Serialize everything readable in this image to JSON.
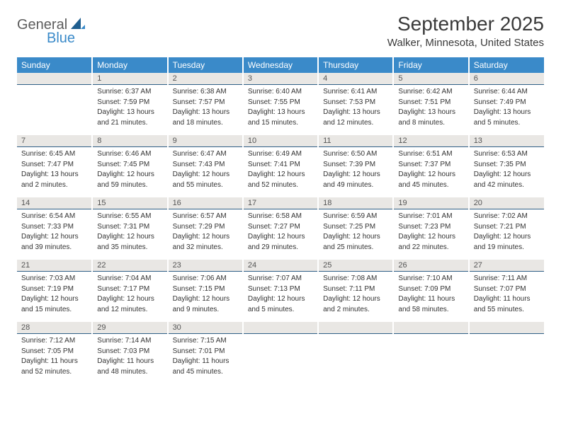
{
  "logo": {
    "part1": "General",
    "part2": "Blue"
  },
  "title": "September 2025",
  "subtitle": "Walker, Minnesota, United States",
  "colors": {
    "header_bg": "#3a8ac9",
    "header_text": "#ffffff",
    "daynum_bg": "#e9e7e4",
    "daynum_border": "#2f5f86",
    "body_text": "#333333",
    "title_text": "#3a3a3a",
    "logo_gray": "#5c5c5c",
    "logo_blue": "#3a8ac9"
  },
  "day_headers": [
    "Sunday",
    "Monday",
    "Tuesday",
    "Wednesday",
    "Thursday",
    "Friday",
    "Saturday"
  ],
  "weeks": [
    [
      {
        "empty": true
      },
      {
        "n": "1",
        "sr": "Sunrise: 6:37 AM",
        "ss": "Sunset: 7:59 PM",
        "dl1": "Daylight: 13 hours",
        "dl2": "and 21 minutes."
      },
      {
        "n": "2",
        "sr": "Sunrise: 6:38 AM",
        "ss": "Sunset: 7:57 PM",
        "dl1": "Daylight: 13 hours",
        "dl2": "and 18 minutes."
      },
      {
        "n": "3",
        "sr": "Sunrise: 6:40 AM",
        "ss": "Sunset: 7:55 PM",
        "dl1": "Daylight: 13 hours",
        "dl2": "and 15 minutes."
      },
      {
        "n": "4",
        "sr": "Sunrise: 6:41 AM",
        "ss": "Sunset: 7:53 PM",
        "dl1": "Daylight: 13 hours",
        "dl2": "and 12 minutes."
      },
      {
        "n": "5",
        "sr": "Sunrise: 6:42 AM",
        "ss": "Sunset: 7:51 PM",
        "dl1": "Daylight: 13 hours",
        "dl2": "and 8 minutes."
      },
      {
        "n": "6",
        "sr": "Sunrise: 6:44 AM",
        "ss": "Sunset: 7:49 PM",
        "dl1": "Daylight: 13 hours",
        "dl2": "and 5 minutes."
      }
    ],
    [
      {
        "n": "7",
        "sr": "Sunrise: 6:45 AM",
        "ss": "Sunset: 7:47 PM",
        "dl1": "Daylight: 13 hours",
        "dl2": "and 2 minutes."
      },
      {
        "n": "8",
        "sr": "Sunrise: 6:46 AM",
        "ss": "Sunset: 7:45 PM",
        "dl1": "Daylight: 12 hours",
        "dl2": "and 59 minutes."
      },
      {
        "n": "9",
        "sr": "Sunrise: 6:47 AM",
        "ss": "Sunset: 7:43 PM",
        "dl1": "Daylight: 12 hours",
        "dl2": "and 55 minutes."
      },
      {
        "n": "10",
        "sr": "Sunrise: 6:49 AM",
        "ss": "Sunset: 7:41 PM",
        "dl1": "Daylight: 12 hours",
        "dl2": "and 52 minutes."
      },
      {
        "n": "11",
        "sr": "Sunrise: 6:50 AM",
        "ss": "Sunset: 7:39 PM",
        "dl1": "Daylight: 12 hours",
        "dl2": "and 49 minutes."
      },
      {
        "n": "12",
        "sr": "Sunrise: 6:51 AM",
        "ss": "Sunset: 7:37 PM",
        "dl1": "Daylight: 12 hours",
        "dl2": "and 45 minutes."
      },
      {
        "n": "13",
        "sr": "Sunrise: 6:53 AM",
        "ss": "Sunset: 7:35 PM",
        "dl1": "Daylight: 12 hours",
        "dl2": "and 42 minutes."
      }
    ],
    [
      {
        "n": "14",
        "sr": "Sunrise: 6:54 AM",
        "ss": "Sunset: 7:33 PM",
        "dl1": "Daylight: 12 hours",
        "dl2": "and 39 minutes."
      },
      {
        "n": "15",
        "sr": "Sunrise: 6:55 AM",
        "ss": "Sunset: 7:31 PM",
        "dl1": "Daylight: 12 hours",
        "dl2": "and 35 minutes."
      },
      {
        "n": "16",
        "sr": "Sunrise: 6:57 AM",
        "ss": "Sunset: 7:29 PM",
        "dl1": "Daylight: 12 hours",
        "dl2": "and 32 minutes."
      },
      {
        "n": "17",
        "sr": "Sunrise: 6:58 AM",
        "ss": "Sunset: 7:27 PM",
        "dl1": "Daylight: 12 hours",
        "dl2": "and 29 minutes."
      },
      {
        "n": "18",
        "sr": "Sunrise: 6:59 AM",
        "ss": "Sunset: 7:25 PM",
        "dl1": "Daylight: 12 hours",
        "dl2": "and 25 minutes."
      },
      {
        "n": "19",
        "sr": "Sunrise: 7:01 AM",
        "ss": "Sunset: 7:23 PM",
        "dl1": "Daylight: 12 hours",
        "dl2": "and 22 minutes."
      },
      {
        "n": "20",
        "sr": "Sunrise: 7:02 AM",
        "ss": "Sunset: 7:21 PM",
        "dl1": "Daylight: 12 hours",
        "dl2": "and 19 minutes."
      }
    ],
    [
      {
        "n": "21",
        "sr": "Sunrise: 7:03 AM",
        "ss": "Sunset: 7:19 PM",
        "dl1": "Daylight: 12 hours",
        "dl2": "and 15 minutes."
      },
      {
        "n": "22",
        "sr": "Sunrise: 7:04 AM",
        "ss": "Sunset: 7:17 PM",
        "dl1": "Daylight: 12 hours",
        "dl2": "and 12 minutes."
      },
      {
        "n": "23",
        "sr": "Sunrise: 7:06 AM",
        "ss": "Sunset: 7:15 PM",
        "dl1": "Daylight: 12 hours",
        "dl2": "and 9 minutes."
      },
      {
        "n": "24",
        "sr": "Sunrise: 7:07 AM",
        "ss": "Sunset: 7:13 PM",
        "dl1": "Daylight: 12 hours",
        "dl2": "and 5 minutes."
      },
      {
        "n": "25",
        "sr": "Sunrise: 7:08 AM",
        "ss": "Sunset: 7:11 PM",
        "dl1": "Daylight: 12 hours",
        "dl2": "and 2 minutes."
      },
      {
        "n": "26",
        "sr": "Sunrise: 7:10 AM",
        "ss": "Sunset: 7:09 PM",
        "dl1": "Daylight: 11 hours",
        "dl2": "and 58 minutes."
      },
      {
        "n": "27",
        "sr": "Sunrise: 7:11 AM",
        "ss": "Sunset: 7:07 PM",
        "dl1": "Daylight: 11 hours",
        "dl2": "and 55 minutes."
      }
    ],
    [
      {
        "n": "28",
        "sr": "Sunrise: 7:12 AM",
        "ss": "Sunset: 7:05 PM",
        "dl1": "Daylight: 11 hours",
        "dl2": "and 52 minutes."
      },
      {
        "n": "29",
        "sr": "Sunrise: 7:14 AM",
        "ss": "Sunset: 7:03 PM",
        "dl1": "Daylight: 11 hours",
        "dl2": "and 48 minutes."
      },
      {
        "n": "30",
        "sr": "Sunrise: 7:15 AM",
        "ss": "Sunset: 7:01 PM",
        "dl1": "Daylight: 11 hours",
        "dl2": "and 45 minutes."
      },
      {
        "empty": true
      },
      {
        "empty": true
      },
      {
        "empty": true
      },
      {
        "empty": true
      }
    ]
  ]
}
